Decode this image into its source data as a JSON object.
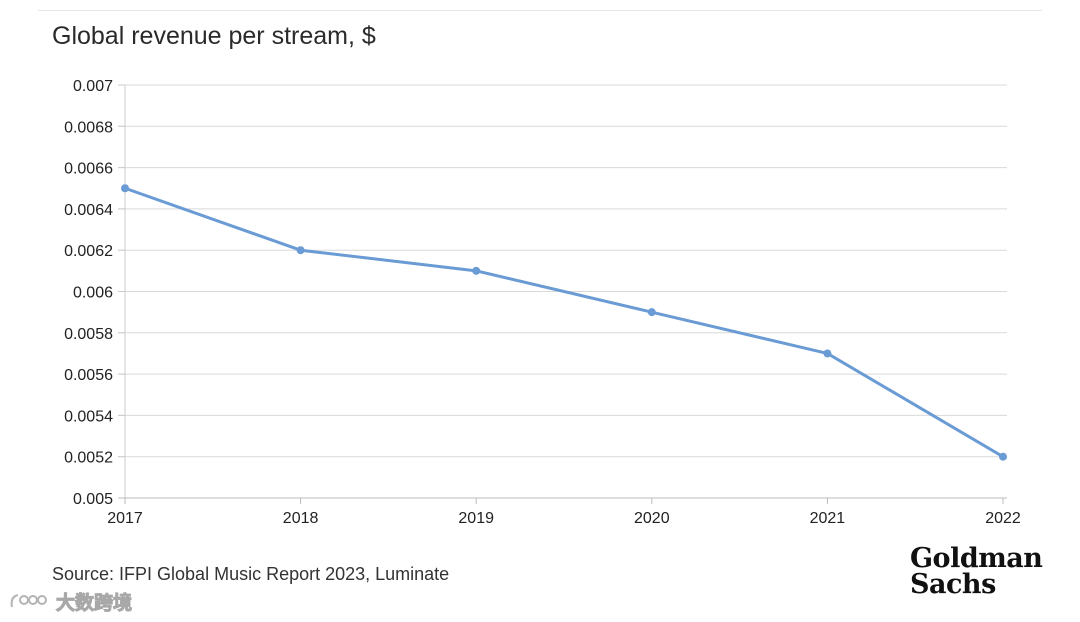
{
  "chart_data": {
    "type": "line",
    "title": "Global revenue per stream, $",
    "xlabel": "",
    "ylabel": "",
    "x": [
      "2017",
      "2018",
      "2019",
      "2020",
      "2021",
      "2022"
    ],
    "series": [
      {
        "name": "Global revenue per stream",
        "values": [
          0.0065,
          0.0062,
          0.0061,
          0.0059,
          0.0057,
          0.0052
        ],
        "color": "#6a9bd4"
      }
    ],
    "ylim": [
      0.005,
      0.007
    ],
    "yticks": [
      "0.005",
      "0.0052",
      "0.0054",
      "0.0056",
      "0.0058",
      "0.006",
      "0.0062",
      "0.0064",
      "0.0066",
      "0.0068",
      "0.007"
    ],
    "grid": true,
    "legend": "none"
  },
  "footer": {
    "source": "Source: IFPI Global Music Report 2023, Luminate",
    "logo_line1": "Goldman",
    "logo_line2": "Sachs"
  },
  "watermark": {
    "text": "大数跨境",
    "icon": "watermark-logo-icon"
  }
}
